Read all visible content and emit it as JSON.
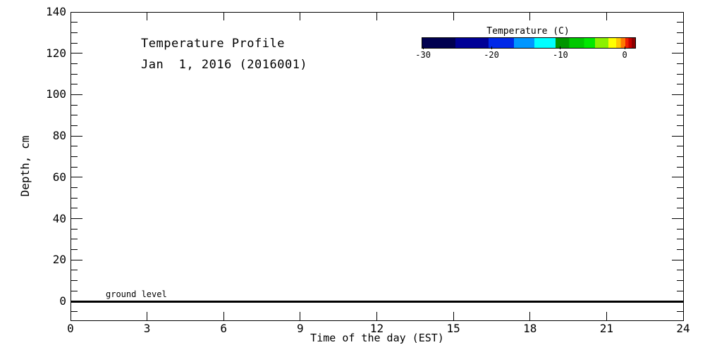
{
  "title": {
    "line1": "Temperature Profile",
    "line2": "Jan  1, 2016 (2016001)"
  },
  "axes": {
    "x": {
      "label": "Time of the day (EST)",
      "min": 0,
      "max": 24,
      "major_ticks": [
        0,
        3,
        6,
        9,
        12,
        15,
        18,
        21,
        24
      ]
    },
    "y": {
      "label": "Depth, cm",
      "min": -9.2,
      "max": 140,
      "major_ticks": [
        0,
        20,
        40,
        60,
        80,
        100,
        120,
        140
      ],
      "minor_step": 5
    }
  },
  "annotations": {
    "ground_level": {
      "text": "ground level",
      "y": 0
    }
  },
  "colorbar": {
    "title": "Temperature (C)",
    "ticks": [
      {
        "value": "-30",
        "pct": 0.7
      },
      {
        "value": "-20",
        "pct": 32.8
      },
      {
        "value": "-10",
        "pct": 65.2
      },
      {
        "value": "0",
        "pct": 95.4
      }
    ],
    "segments": [
      {
        "color": "#000050",
        "to_pct": 15.6
      },
      {
        "color": "#000096",
        "to_pct": 31.1
      },
      {
        "color": "#0028E8",
        "to_pct": 43.0
      },
      {
        "color": "#0096FF",
        "to_pct": 52.6
      },
      {
        "color": "#00FFFF",
        "to_pct": 62.6
      },
      {
        "color": "#009600",
        "to_pct": 69.0
      },
      {
        "color": "#00C800",
        "to_pct": 76.0
      },
      {
        "color": "#00E800",
        "to_pct": 81.1
      },
      {
        "color": "#8CF000",
        "to_pct": 87.4
      },
      {
        "color": "#FFFF00",
        "to_pct": 91.0
      },
      {
        "color": "#FFC800",
        "to_pct": 93.2
      },
      {
        "color": "#FF7800",
        "to_pct": 95.4
      },
      {
        "color": "#F01E00",
        "to_pct": 96.9
      },
      {
        "color": "#C80000",
        "to_pct": 98.4
      },
      {
        "color": "#8C0000",
        "to_pct": 100
      }
    ]
  },
  "chart_data": {
    "type": "heatmap",
    "title": "Temperature Profile",
    "subtitle": "Jan  1, 2016 (2016001)",
    "xlabel": "Time of the day (EST)",
    "ylabel": "Depth, cm",
    "xlim": [
      0,
      24
    ],
    "ylim": [
      -9.2,
      140
    ],
    "x_ticks": [
      0,
      3,
      6,
      9,
      12,
      15,
      18,
      21,
      24
    ],
    "y_ticks": [
      0,
      20,
      40,
      60,
      80,
      100,
      120,
      140
    ],
    "y_minor_tick_step": 5,
    "grid": false,
    "values": [],
    "annotations": [
      {
        "text": "ground level",
        "type": "horizontal-line",
        "y": 0
      }
    ],
    "colorbar": {
      "label": "Temperature (C)",
      "tick_values": [
        -30,
        -20,
        -10,
        0
      ],
      "range_estimate": [
        -30.3,
        1.4
      ],
      "orientation": "horizontal",
      "position": "top-right"
    }
  }
}
